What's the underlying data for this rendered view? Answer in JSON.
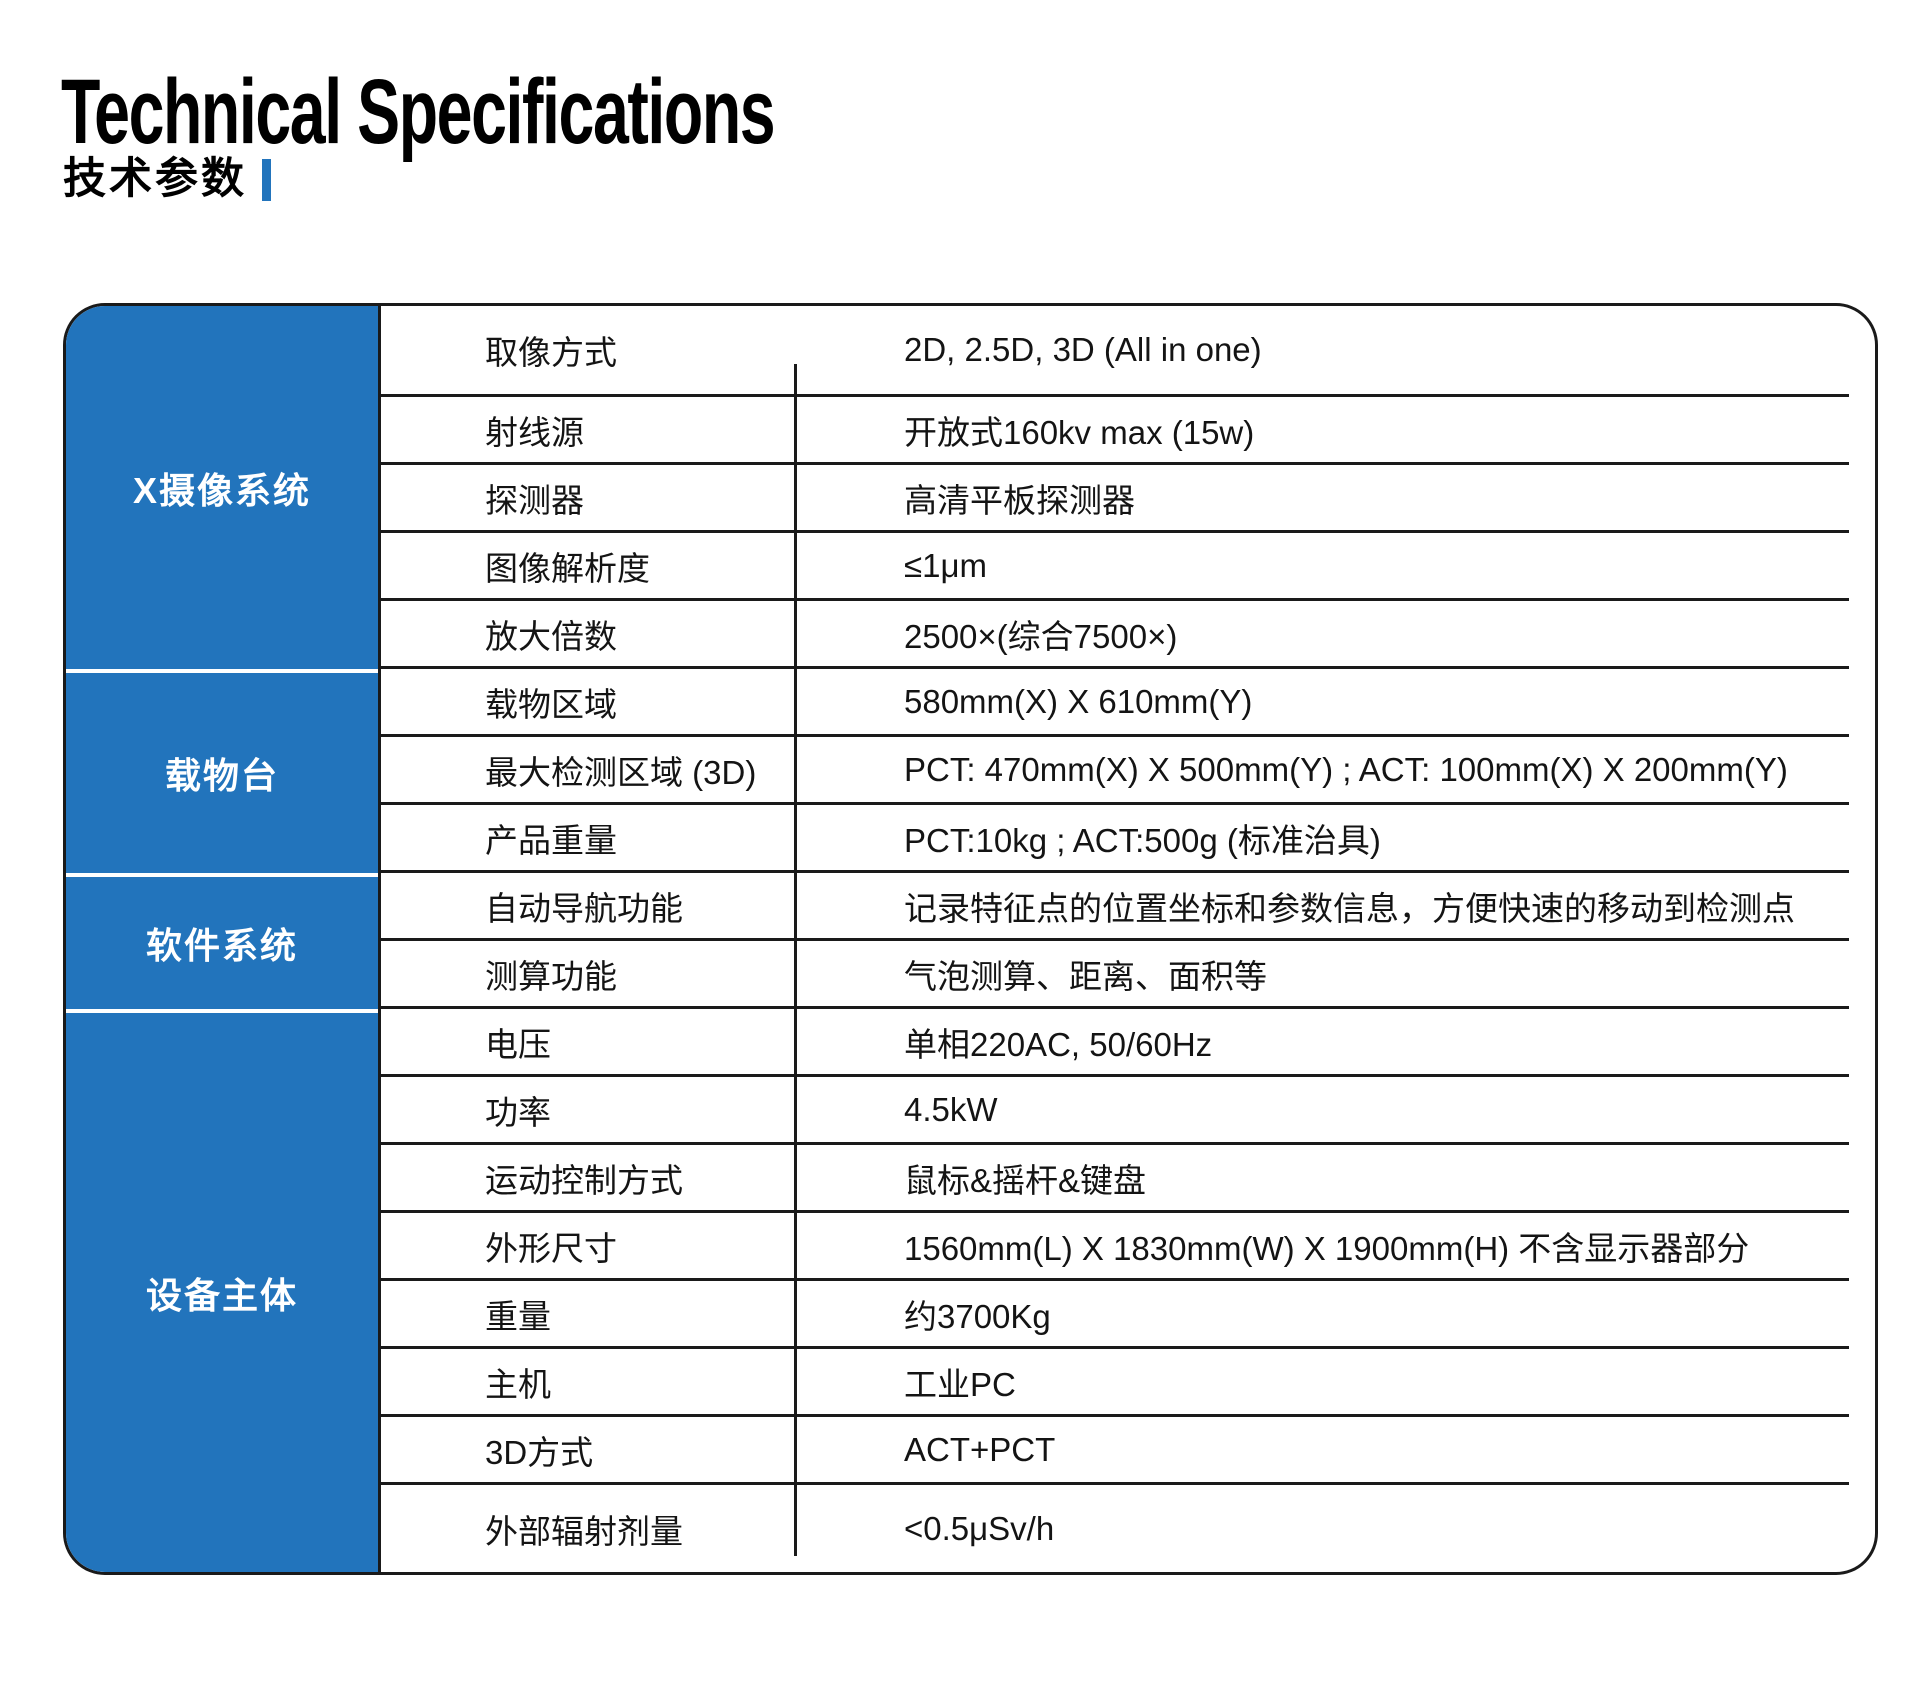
{
  "header": {
    "title": "Technical Specifications",
    "subtitle": "技术参数"
  },
  "colors": {
    "accent_blue": "#2274BC",
    "line_black": "#1a1a1a",
    "sidebar_text": "#ffffff"
  },
  "table": {
    "groups": [
      {
        "category": "X摄像系统",
        "rows": [
          {
            "name": "取像方式",
            "value": "2D, 2.5D, 3D (All in one)"
          },
          {
            "name": "射线源",
            "value": "开放式160kv max (15w)"
          },
          {
            "name": "探测器",
            "value": "高清平板探测器"
          },
          {
            "name": "图像解析度",
            "value": "≤1μm"
          },
          {
            "name": "放大倍数",
            "value": "2500×(综合7500×)"
          }
        ]
      },
      {
        "category": "载物台",
        "rows": [
          {
            "name": "载物区域",
            "value": "580mm(X) X 610mm(Y)"
          },
          {
            "name": "最大检测区域 (3D)",
            "value": "PCT: 470mm(X) X 500mm(Y) ; ACT: 100mm(X) X 200mm(Y)"
          },
          {
            "name": "产品重量",
            "value": "PCT:10kg ; ACT:500g (标准治具)"
          }
        ]
      },
      {
        "category": "软件系统",
        "rows": [
          {
            "name": "自动导航功能",
            "value": "记录特征点的位置坐标和参数信息，方便快速的移动到检测点"
          },
          {
            "name": "测算功能",
            "value": "气泡测算、距离、面积等"
          }
        ]
      },
      {
        "category": "设备主体",
        "rows": [
          {
            "name": "电压",
            "value": "单相220AC, 50/60Hz"
          },
          {
            "name": "功率",
            "value": "4.5kW"
          },
          {
            "name": "运动控制方式",
            "value": "鼠标&摇杆&键盘"
          },
          {
            "name": "外形尺寸",
            "value": "1560mm(L) X 1830mm(W) X 1900mm(H) 不含显示器部分"
          },
          {
            "name": "重量",
            "value": "约3700Kg"
          },
          {
            "name": "主机",
            "value": "工业PC"
          },
          {
            "name": "3D方式",
            "value": "ACT+PCT"
          },
          {
            "name": "外部辐射剂量",
            "value": "<0.5μSv/h"
          }
        ]
      }
    ]
  }
}
